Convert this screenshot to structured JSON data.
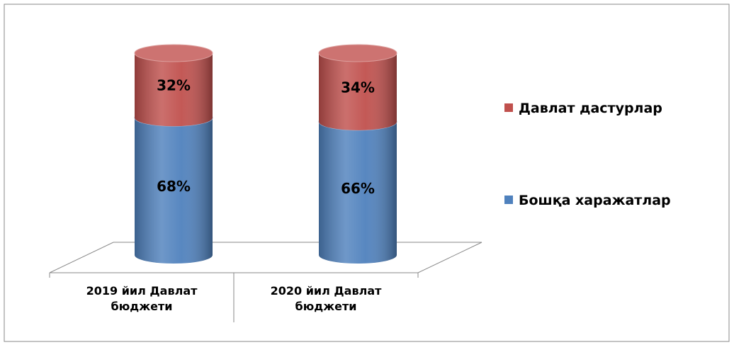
{
  "chart_data": {
    "type": "bar3d_stacked",
    "categories": [
      "2019 йил Давлат бюджети",
      "2020 йил Давлат бюджети"
    ],
    "series": [
      {
        "name": "Бошқа харажатлар",
        "color": "#4f81bd",
        "values": [
          68,
          66
        ],
        "value_labels": [
          "68%",
          "66%"
        ]
      },
      {
        "name": "Давлат дастурлар",
        "color": "#c0504d",
        "values": [
          32,
          34
        ],
        "value_labels": [
          "32%",
          "34%"
        ]
      }
    ],
    "legend": "right"
  }
}
